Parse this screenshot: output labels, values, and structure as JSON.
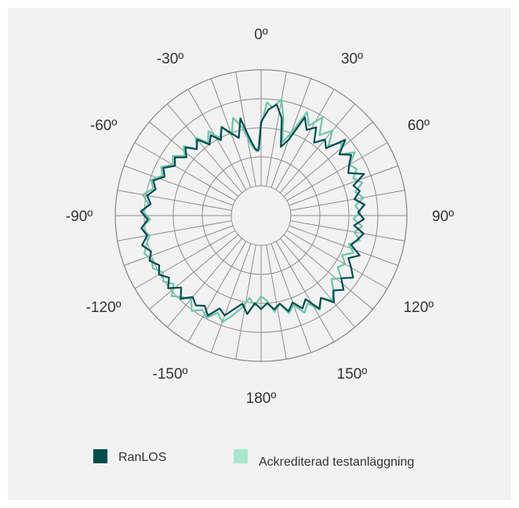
{
  "colors": {
    "background": "#f2f2f2",
    "grid": "#8c8c8c",
    "series_dark": "#004d4d",
    "series_light": "#6cc6a6",
    "legend_light": "#a8e6cf"
  },
  "chart_data": {
    "type": "polar-line",
    "title": "",
    "angle_labels": [
      {
        "angle": 0,
        "text": "0º"
      },
      {
        "angle": 30,
        "text": "30º"
      },
      {
        "angle": 60,
        "text": "60º"
      },
      {
        "angle": 90,
        "text": "90º"
      },
      {
        "angle": 120,
        "text": "120º"
      },
      {
        "angle": 150,
        "text": "150º"
      },
      {
        "angle": 180,
        "text": "180º"
      },
      {
        "angle": -150,
        "text": "-150º"
      },
      {
        "angle": -120,
        "text": "-120º"
      },
      {
        "angle": -90,
        "text": "-90º"
      },
      {
        "angle": -60,
        "text": "-60º"
      },
      {
        "angle": -30,
        "text": "-30º"
      }
    ],
    "radial_rings": 4,
    "spoke_step_deg": 10,
    "legend_placement": "bottom",
    "series": [
      {
        "name": "RanLOS",
        "color": "#004d4d",
        "points": [
          [
            -2,
            0.31
          ],
          [
            0,
            0.55
          ],
          [
            4,
            0.66
          ],
          [
            8,
            0.71
          ],
          [
            12,
            0.6
          ],
          [
            16,
            0.36
          ],
          [
            20,
            0.44
          ],
          [
            24,
            0.67
          ],
          [
            28,
            0.58
          ],
          [
            32,
            0.64
          ],
          [
            36,
            0.52
          ],
          [
            40,
            0.6
          ],
          [
            44,
            0.55
          ],
          [
            48,
            0.72
          ],
          [
            52,
            0.6
          ],
          [
            56,
            0.68
          ],
          [
            60,
            0.62
          ],
          [
            64,
            0.58
          ],
          [
            68,
            0.7
          ],
          [
            72,
            0.58
          ],
          [
            76,
            0.62
          ],
          [
            80,
            0.56
          ],
          [
            84,
            0.64
          ],
          [
            88,
            0.58
          ],
          [
            92,
            0.63
          ],
          [
            96,
            0.55
          ],
          [
            100,
            0.64
          ],
          [
            104,
            0.6
          ],
          [
            108,
            0.56
          ],
          [
            112,
            0.66
          ],
          [
            116,
            0.58
          ],
          [
            120,
            0.64
          ],
          [
            124,
            0.7
          ],
          [
            128,
            0.62
          ],
          [
            132,
            0.7
          ],
          [
            136,
            0.64
          ],
          [
            140,
            0.72
          ],
          [
            144,
            0.62
          ],
          [
            148,
            0.69
          ],
          [
            152,
            0.56
          ],
          [
            156,
            0.62
          ],
          [
            160,
            0.54
          ],
          [
            164,
            0.6
          ],
          [
            168,
            0.52
          ],
          [
            172,
            0.56
          ],
          [
            176,
            0.5
          ],
          [
            180,
            0.55
          ],
          [
            184,
            0.5
          ],
          [
            188,
            0.6
          ],
          [
            192,
            0.52
          ],
          [
            196,
            0.58
          ],
          [
            200,
            0.66
          ],
          [
            204,
            0.62
          ],
          [
            208,
            0.72
          ],
          [
            212,
            0.66
          ],
          [
            216,
            0.7
          ],
          [
            220,
            0.66
          ],
          [
            224,
            0.74
          ],
          [
            228,
            0.67
          ],
          [
            232,
            0.76
          ],
          [
            236,
            0.7
          ],
          [
            240,
            0.76
          ],
          [
            244,
            0.72
          ],
          [
            248,
            0.78
          ],
          [
            252,
            0.74
          ],
          [
            256,
            0.8
          ],
          [
            260,
            0.74
          ],
          [
            264,
            0.78
          ],
          [
            268,
            0.72
          ],
          [
            272,
            0.78
          ],
          [
            276,
            0.7
          ],
          [
            280,
            0.74
          ],
          [
            284,
            0.68
          ],
          [
            288,
            0.72
          ],
          [
            292,
            0.64
          ],
          [
            296,
            0.68
          ],
          [
            300,
            0.6
          ],
          [
            304,
            0.64
          ],
          [
            308,
            0.56
          ],
          [
            312,
            0.62
          ],
          [
            316,
            0.54
          ],
          [
            320,
            0.6
          ],
          [
            324,
            0.5
          ],
          [
            328,
            0.56
          ],
          [
            332,
            0.48
          ],
          [
            336,
            0.58
          ],
          [
            340,
            0.5
          ],
          [
            344,
            0.44
          ],
          [
            348,
            0.6
          ],
          [
            352,
            0.4
          ],
          [
            355,
            0.32
          ],
          [
            358,
            0.3
          ]
        ]
      },
      {
        "name": "Ackrediterad testanläggning",
        "color": "#6cc6a6",
        "points": [
          [
            -2,
            0.36
          ],
          [
            0,
            0.52
          ],
          [
            3,
            0.72
          ],
          [
            6,
            0.68
          ],
          [
            10,
            0.76
          ],
          [
            13,
            0.6
          ],
          [
            16,
            0.4
          ],
          [
            20,
            0.5
          ],
          [
            24,
            0.72
          ],
          [
            28,
            0.62
          ],
          [
            32,
            0.74
          ],
          [
            36,
            0.6
          ],
          [
            40,
            0.7
          ],
          [
            44,
            0.58
          ],
          [
            48,
            0.68
          ],
          [
            52,
            0.6
          ],
          [
            56,
            0.72
          ],
          [
            60,
            0.62
          ],
          [
            64,
            0.66
          ],
          [
            68,
            0.6
          ],
          [
            72,
            0.66
          ],
          [
            76,
            0.58
          ],
          [
            80,
            0.64
          ],
          [
            84,
            0.56
          ],
          [
            88,
            0.6
          ],
          [
            92,
            0.54
          ],
          [
            96,
            0.62
          ],
          [
            100,
            0.56
          ],
          [
            104,
            0.62
          ],
          [
            108,
            0.54
          ],
          [
            112,
            0.6
          ],
          [
            116,
            0.52
          ],
          [
            120,
            0.58
          ],
          [
            124,
            0.54
          ],
          [
            128,
            0.62
          ],
          [
            132,
            0.56
          ],
          [
            136,
            0.64
          ],
          [
            140,
            0.7
          ],
          [
            144,
            0.62
          ],
          [
            148,
            0.7
          ],
          [
            152,
            0.6
          ],
          [
            156,
            0.66
          ],
          [
            160,
            0.56
          ],
          [
            164,
            0.62
          ],
          [
            168,
            0.52
          ],
          [
            172,
            0.58
          ],
          [
            176,
            0.48
          ],
          [
            180,
            0.44
          ],
          [
            184,
            0.52
          ],
          [
            188,
            0.46
          ],
          [
            192,
            0.56
          ],
          [
            196,
            0.64
          ],
          [
            200,
            0.72
          ],
          [
            204,
            0.66
          ],
          [
            208,
            0.74
          ],
          [
            212,
            0.7
          ],
          [
            216,
            0.76
          ],
          [
            220,
            0.68
          ],
          [
            224,
            0.72
          ],
          [
            228,
            0.78
          ],
          [
            232,
            0.7
          ],
          [
            236,
            0.76
          ],
          [
            240,
            0.72
          ],
          [
            244,
            0.78
          ],
          [
            248,
            0.76
          ],
          [
            252,
            0.8
          ],
          [
            256,
            0.76
          ],
          [
            260,
            0.72
          ],
          [
            264,
            0.78
          ],
          [
            268,
            0.7
          ],
          [
            272,
            0.76
          ],
          [
            276,
            0.72
          ],
          [
            280,
            0.78
          ],
          [
            284,
            0.7
          ],
          [
            288,
            0.74
          ],
          [
            292,
            0.66
          ],
          [
            296,
            0.7
          ],
          [
            300,
            0.62
          ],
          [
            304,
            0.66
          ],
          [
            308,
            0.58
          ],
          [
            312,
            0.64
          ],
          [
            316,
            0.54
          ],
          [
            320,
            0.62
          ],
          [
            324,
            0.52
          ],
          [
            328,
            0.6
          ],
          [
            332,
            0.5
          ],
          [
            336,
            0.58
          ],
          [
            340,
            0.48
          ],
          [
            344,
            0.62
          ],
          [
            348,
            0.52
          ],
          [
            352,
            0.36
          ],
          [
            356,
            0.3
          ],
          [
            358,
            0.34
          ]
        ]
      }
    ]
  },
  "legend": {
    "items": [
      {
        "label": "RanLOS",
        "color": "#004d4d"
      },
      {
        "label": "Ackrediterad testanläggning",
        "color": "#a8e6cf"
      }
    ]
  }
}
